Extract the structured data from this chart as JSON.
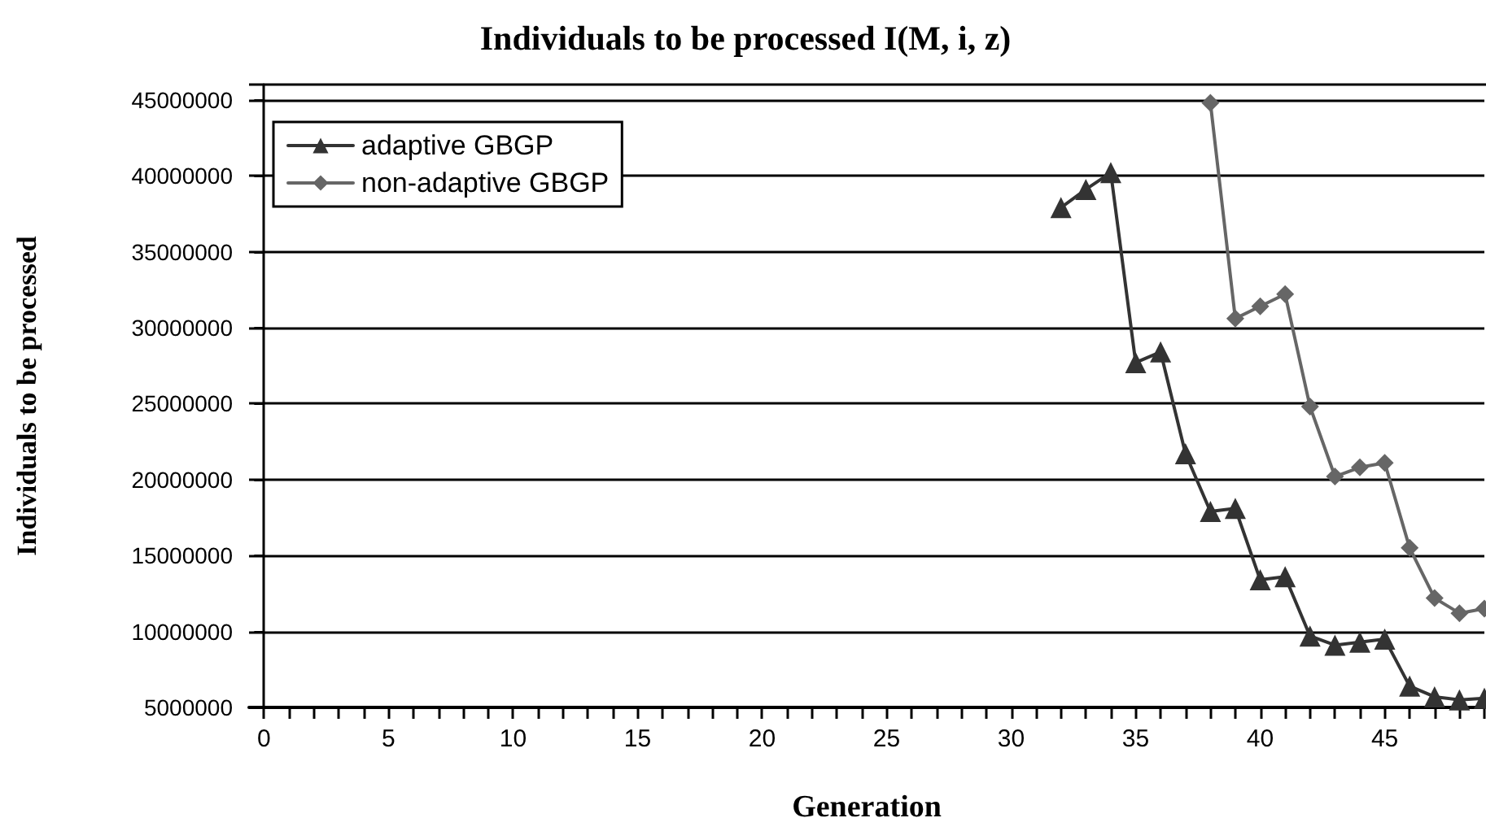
{
  "chart_data": {
    "type": "line",
    "title": "Individuals to be processed I(M, i, z)",
    "xlabel": "Generation",
    "ylabel": "Individuals to be processed",
    "series": [
      {
        "name": "adaptive GBGP",
        "color": "#333333",
        "marker": "triangle",
        "x": [
          32,
          33,
          34,
          35,
          36,
          37,
          38,
          39,
          40,
          41,
          42,
          43,
          44,
          45,
          46,
          47,
          48,
          49
        ],
        "values": [
          37900000,
          39100000,
          40200000,
          27700000,
          28400000,
          21700000,
          17900000,
          18100000,
          13400000,
          13600000,
          9700000,
          9100000,
          9300000,
          9500000,
          6400000,
          5700000,
          5500000,
          5600000
        ]
      },
      {
        "name": "non-adaptive GBGP",
        "color": "#666666",
        "marker": "diamond",
        "x": [
          38,
          39,
          40,
          41,
          42,
          43,
          44,
          45,
          46,
          47,
          48,
          49
        ],
        "values": [
          44800000,
          30600000,
          31400000,
          32200000,
          24800000,
          20200000,
          20800000,
          21100000,
          15500000,
          12200000,
          11200000,
          11500000
        ]
      }
    ],
    "xlim": [
      -0.6,
      49
    ],
    "xticks": [
      0,
      {
        "value": 1,
        "label": null
      },
      {
        "value": 2,
        "label": null
      },
      {
        "value": 3,
        "label": null
      },
      {
        "value": 4,
        "label": null
      },
      5,
      {
        "value": 6,
        "label": null
      },
      {
        "value": 7,
        "label": null
      },
      {
        "value": 8,
        "label": null
      },
      {
        "value": 9,
        "label": null
      },
      10,
      {
        "value": 11,
        "label": null
      },
      {
        "value": 12,
        "label": null
      },
      {
        "value": 13,
        "label": null
      },
      {
        "value": 14,
        "label": null
      },
      15,
      {
        "value": 16,
        "label": null
      },
      {
        "value": 17,
        "label": null
      },
      {
        "value": 18,
        "label": null
      },
      {
        "value": 19,
        "label": null
      },
      20,
      {
        "value": 21,
        "label": null
      },
      {
        "value": 22,
        "label": null
      },
      {
        "value": 23,
        "label": null
      },
      {
        "value": 24,
        "label": null
      },
      25,
      {
        "value": 26,
        "label": null
      },
      {
        "value": 27,
        "label": null
      },
      {
        "value": 28,
        "label": null
      },
      {
        "value": 29,
        "label": null
      },
      30,
      {
        "value": 31,
        "label": null
      },
      {
        "value": 32,
        "label": null
      },
      {
        "value": 33,
        "label": null
      },
      {
        "value": 34,
        "label": null
      },
      35,
      {
        "value": 36,
        "label": null
      },
      {
        "value": 37,
        "label": null
      },
      {
        "value": 38,
        "label": null
      },
      {
        "value": 39,
        "label": null
      },
      40,
      {
        "value": 41,
        "label": null
      },
      {
        "value": 42,
        "label": null
      },
      {
        "value": 43,
        "label": null
      },
      {
        "value": 44,
        "label": null
      },
      45,
      {
        "value": 46,
        "label": null
      },
      {
        "value": 47,
        "label": null
      },
      {
        "value": 48,
        "label": null
      },
      {
        "value": 49,
        "label": null
      }
    ],
    "ylim": [
      5000000,
      46000000
    ],
    "yticks": [
      5000000,
      10000000,
      15000000,
      20000000,
      25000000,
      30000000,
      35000000,
      40000000,
      45000000
    ],
    "grid": "y",
    "legend": "top left",
    "line_style": "solid"
  }
}
